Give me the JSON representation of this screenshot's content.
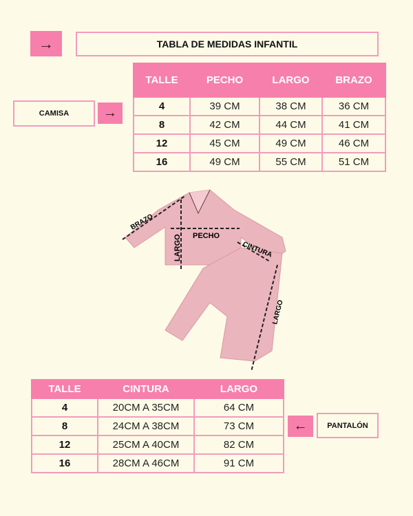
{
  "title": "TABLA DE MEDIDAS INFANTIL",
  "colors": {
    "accent": "#f77fab",
    "border": "#f39bbd",
    "background": "#fdfbe8"
  },
  "camisa": {
    "label": "CAMISA",
    "icon": "arrow-right-icon",
    "headers": [
      "TALLE",
      "PECHO",
      "LARGO",
      "BRAZO"
    ],
    "rows": [
      [
        "4",
        "39 CM",
        "38 CM",
        "36 CM"
      ],
      [
        "8",
        "42 CM",
        "44 CM",
        "41 CM"
      ],
      [
        "12",
        "45 CM",
        "49 CM",
        "46 CM"
      ],
      [
        "16",
        "49 CM",
        "55 CM",
        "51 CM"
      ]
    ]
  },
  "diagram": {
    "brazo": "BRAZO",
    "pecho": "PECHO",
    "largo_camisa": "LARGO",
    "cintura": "CINTURA",
    "largo_pantalon": "LARGO"
  },
  "pantalon": {
    "label": "PANTALÓN",
    "icon": "arrow-left-icon",
    "headers": [
      "TALLE",
      "CINTURA",
      "LARGO"
    ],
    "rows": [
      [
        "4",
        "20CM A 35CM",
        "64 CM"
      ],
      [
        "8",
        "24CM A 38CM",
        "73 CM"
      ],
      [
        "12",
        "25CM A 40CM",
        "82 CM"
      ],
      [
        "16",
        "28CM A 46CM",
        "91 CM"
      ]
    ]
  }
}
